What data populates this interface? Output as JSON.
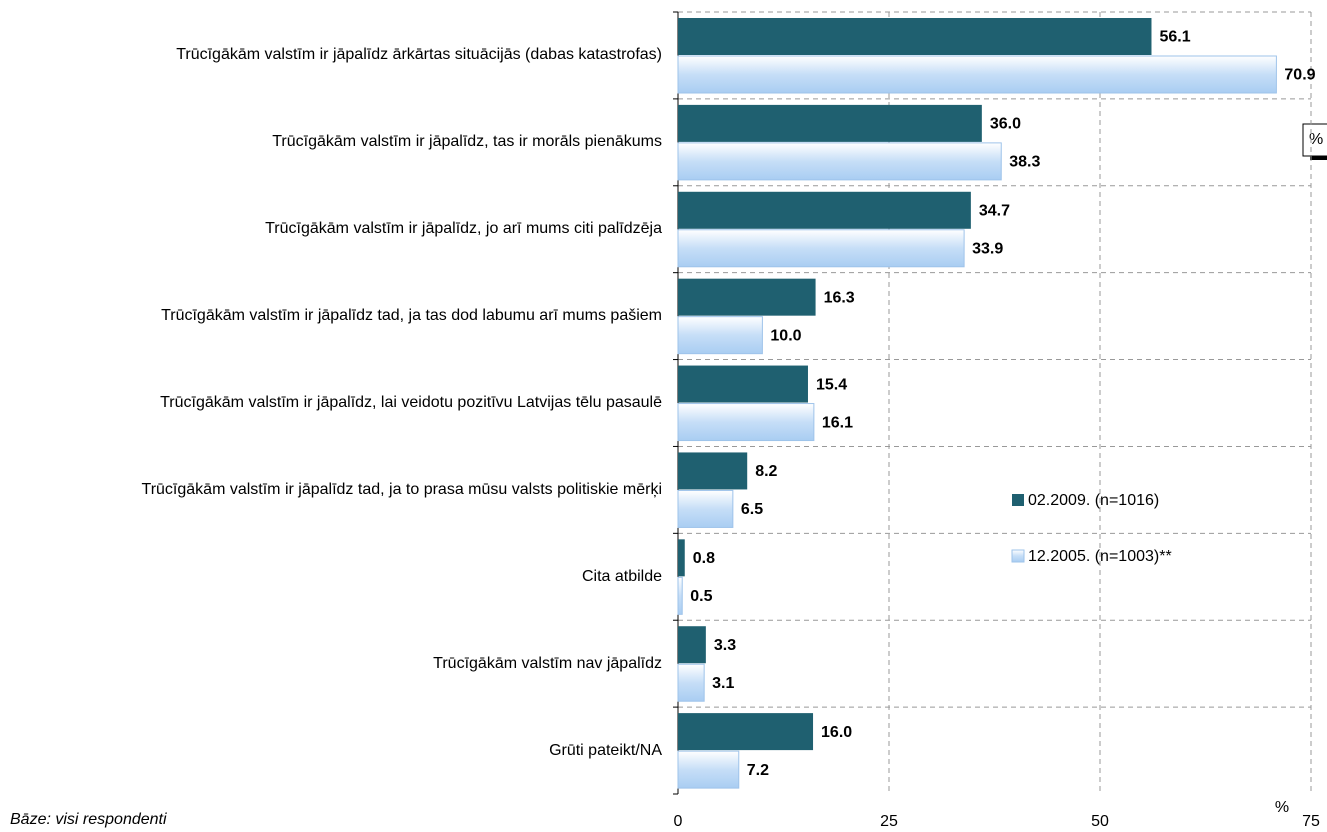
{
  "chart_data": {
    "type": "bar",
    "orientation": "horizontal",
    "categories": [
      "Trūcīgākām valstīm ir jāpalīdz ārkārtas situācijās (dabas katastrofas)",
      "Trūcīgākām valstīm ir jāpalīdz, tas ir morāls pienākums",
      "Trūcīgākām valstīm ir jāpalīdz, jo arī mums citi palīdzēja",
      "Trūcīgākām valstīm ir jāpalīdz tad, ja tas dod labumu arī mums pašiem",
      "Trūcīgākām valstīm ir jāpalīdz, lai veidotu pozitīvu Latvijas tēlu pasaulē",
      "Trūcīgākām valstīm ir jāpalīdz tad, ja to prasa mūsu valsts politiskie mērķi",
      "Cita atbilde",
      "Trūcīgākām valstīm nav jāpalīdz",
      "Grūti pateikt/NA"
    ],
    "series": [
      {
        "name": "02.2009. (n=1016)",
        "color": "#1f6070",
        "values": [
          56.1,
          36.0,
          34.7,
          16.3,
          15.4,
          8.2,
          0.8,
          3.3,
          16.0
        ],
        "value_labels": [
          "56.1",
          "36.0",
          "34.7",
          "16.3",
          "15.4",
          "8.2",
          "0.8",
          "3.3",
          "16.0"
        ]
      },
      {
        "name": "12.2005. (n=1003)**",
        "color": "#c6def7",
        "values": [
          70.9,
          38.3,
          33.9,
          10.0,
          16.1,
          6.5,
          0.5,
          3.1,
          7.2
        ],
        "value_labels": [
          "70.9",
          "38.3",
          "33.9",
          "10.0",
          "16.1",
          "6.5",
          "0.5",
          "3.1",
          "7.2"
        ]
      }
    ],
    "xlim": [
      0,
      75
    ],
    "xticks": [
      0,
      25,
      50,
      75
    ],
    "x_unit": "%",
    "grid": true,
    "footnote": "Bāze: visi respondenti"
  }
}
